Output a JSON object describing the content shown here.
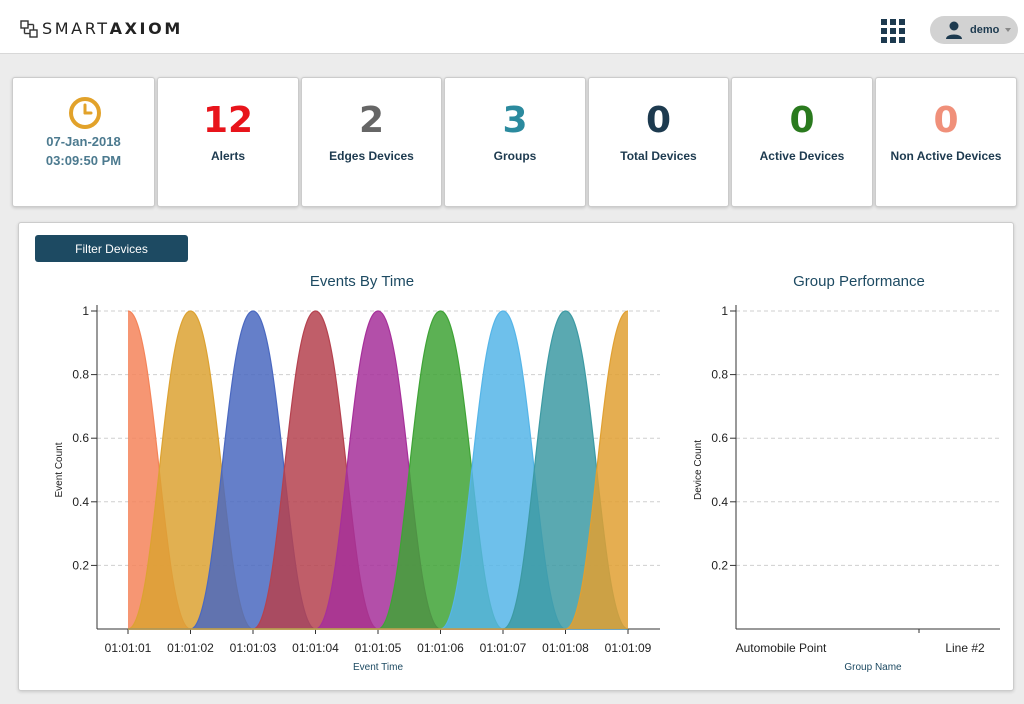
{
  "brand": {
    "text_light": "SMART",
    "text_bold": "AXIOM"
  },
  "header": {
    "user_name": "demo"
  },
  "stats": {
    "datetime": {
      "date": "07-Jan-2018",
      "time": "03:09:50 PM"
    },
    "cards": [
      {
        "value": "12",
        "label": "Alerts",
        "color": "#e8141b"
      },
      {
        "value": "2",
        "label": "Edges Devices",
        "color": "#666666"
      },
      {
        "value": "3",
        "label": "Groups",
        "color": "#2b8a9e"
      },
      {
        "value": "0",
        "label": "Total Devices",
        "color": "#1d3a4f"
      },
      {
        "value": "0",
        "label": "Active Devices",
        "color": "#2a7a1e"
      },
      {
        "value": "0",
        "label": "Non Active Devices",
        "color": "#f0907a"
      }
    ]
  },
  "panel": {
    "filter_button": "Filter Devices"
  },
  "colors": {
    "accent": "#1d4a62",
    "clock": "#e2a22a"
  },
  "chart_data": [
    {
      "type": "area",
      "title": "Events By Time",
      "xlabel": "Event Time",
      "ylabel": "Event Count",
      "x": [
        "01:01:01",
        "01:01:02",
        "01:01:03",
        "01:01:04",
        "01:01:05",
        "01:01:06",
        "01:01:07",
        "01:01:08",
        "01:01:09"
      ],
      "ylim": [
        0,
        1
      ],
      "yticks": [
        "0.2",
        "0.4",
        "0.6",
        "0.8",
        "1"
      ],
      "series": [
        {
          "peak": "01:01:01",
          "values": [
            1,
            0,
            0,
            0,
            0,
            0,
            0,
            0,
            0
          ],
          "color": "#f4845a"
        },
        {
          "peak": "01:01:02",
          "values": [
            0,
            1,
            0,
            0,
            0,
            0,
            0,
            0,
            0
          ],
          "color": "#dca232"
        },
        {
          "peak": "01:01:03",
          "values": [
            0,
            0,
            1,
            0,
            0,
            0,
            0,
            0,
            0
          ],
          "color": "#4a68c0"
        },
        {
          "peak": "01:01:04",
          "values": [
            0,
            0,
            0,
            1,
            0,
            0,
            0,
            0,
            0
          ],
          "color": "#b5424f"
        },
        {
          "peak": "01:01:05",
          "values": [
            0,
            0,
            0,
            0,
            1,
            0,
            0,
            0,
            0
          ],
          "color": "#a6309a"
        },
        {
          "peak": "01:01:06",
          "values": [
            0,
            0,
            0,
            0,
            0,
            1,
            0,
            0,
            0
          ],
          "color": "#3fa336"
        },
        {
          "peak": "01:01:07",
          "values": [
            0,
            0,
            0,
            0,
            0,
            0,
            1,
            0,
            0
          ],
          "color": "#55b5e8"
        },
        {
          "peak": "01:01:08",
          "values": [
            0,
            0,
            0,
            0,
            0,
            0,
            0,
            1,
            0
          ],
          "color": "#3d9aa3"
        },
        {
          "peak": "01:01:09",
          "values": [
            0,
            0,
            0,
            0,
            0,
            0,
            0,
            0,
            1
          ],
          "color": "#e0a032"
        }
      ],
      "grid": true
    },
    {
      "type": "bar",
      "title": "Group Performance",
      "xlabel": "Group Name",
      "ylabel": "Device Count",
      "categories": [
        "Automobile Point",
        "Line #2"
      ],
      "values": [
        0,
        0
      ],
      "ylim": [
        0,
        1
      ],
      "yticks": [
        "0.2",
        "0.4",
        "0.6",
        "0.8",
        "1"
      ],
      "grid": true
    }
  ]
}
